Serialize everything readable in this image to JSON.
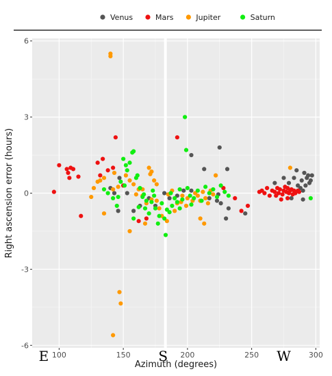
{
  "chart_data": {
    "type": "scatter",
    "xlabel": "Azimuth (degrees)",
    "ylabel": "Right ascension error (hours)",
    "xlim": [
      79,
      303
    ],
    "ylim": [
      -6.1,
      6.1
    ],
    "x_ticks": [
      100,
      150,
      200,
      250,
      300
    ],
    "y_ticks": [
      -6,
      -3,
      0,
      3,
      6
    ],
    "grid": true,
    "legend_position": "top",
    "compass_labels": [
      {
        "label": "E",
        "x": 88
      },
      {
        "label": "S",
        "x": 181
      },
      {
        "label": "W",
        "x": 275
      }
    ],
    "series": [
      {
        "name": "Venus",
        "color": "#555555",
        "points": [
          [
            140,
            0.2
          ],
          [
            143,
            0.0
          ],
          [
            146,
            -0.7
          ],
          [
            147,
            0.6
          ],
          [
            150,
            0.3
          ],
          [
            153,
            0.0
          ],
          [
            158,
            -0.7
          ],
          [
            163,
            -0.5
          ],
          [
            170,
            -0.2
          ],
          [
            175,
            -0.5
          ],
          [
            182,
            0.0
          ],
          [
            186,
            -0.2
          ],
          [
            192,
            -0.1
          ],
          [
            197,
            0.1
          ],
          [
            203,
            0.1
          ],
          [
            210,
            -0.3
          ],
          [
            217,
            -0.2
          ],
          [
            223,
            -0.3
          ],
          [
            226,
            -0.4
          ],
          [
            232,
            -0.6
          ],
          [
            203,
            1.5
          ],
          [
            213,
            0.95
          ],
          [
            225,
            1.8
          ],
          [
            231,
            0.95
          ],
          [
            230,
            -1.0
          ],
          [
            245,
            -0.8
          ],
          [
            268,
            0.4
          ],
          [
            275,
            0.6
          ],
          [
            279,
            0.4
          ],
          [
            283,
            0.6
          ],
          [
            285,
            0.9
          ],
          [
            286,
            0.3
          ],
          [
            288,
            0.2
          ],
          [
            289,
            0.5
          ],
          [
            290,
            0.1
          ],
          [
            291,
            0.8
          ],
          [
            292,
            0.3
          ],
          [
            293,
            0.6
          ],
          [
            294,
            0.7
          ],
          [
            295,
            0.4
          ],
          [
            296,
            0.5
          ],
          [
            297,
            0.7
          ],
          [
            290,
            -0.25
          ],
          [
            281,
            -0.2
          ],
          [
            224,
            -0.05
          ]
        ]
      },
      {
        "name": "Mars",
        "color": "#ee1111",
        "points": [
          [
            96,
            0.05
          ],
          [
            100,
            1.1
          ],
          [
            106,
            0.95
          ],
          [
            107,
            0.8
          ],
          [
            108,
            0.6
          ],
          [
            109,
            1.0
          ],
          [
            111,
            0.95
          ],
          [
            115,
            0.65
          ],
          [
            117,
            -0.9
          ],
          [
            130,
            1.2
          ],
          [
            132,
            0.7
          ],
          [
            134,
            1.35
          ],
          [
            138,
            0.9
          ],
          [
            142,
            1.0
          ],
          [
            144,
            2.2
          ],
          [
            150,
            0.3
          ],
          [
            162,
            -1.1
          ],
          [
            168,
            -1.0
          ],
          [
            192,
            2.2
          ],
          [
            228,
            0.2
          ],
          [
            237,
            -0.2
          ],
          [
            242,
            -0.7
          ],
          [
            247,
            -0.5
          ],
          [
            256,
            0.05
          ],
          [
            258,
            0.1
          ],
          [
            260,
            0.0
          ],
          [
            262,
            0.2
          ],
          [
            264,
            -0.1
          ],
          [
            266,
            0.1
          ],
          [
            268,
            0.05
          ],
          [
            270,
            0.2
          ],
          [
            271,
            0.0
          ],
          [
            272,
            0.15
          ],
          [
            274,
            -0.05
          ],
          [
            275,
            0.1
          ],
          [
            276,
            0.25
          ],
          [
            277,
            0.05
          ],
          [
            278,
            0.2
          ],
          [
            279,
            0.0
          ],
          [
            280,
            0.1
          ],
          [
            281,
            0.15
          ],
          [
            282,
            -0.05
          ],
          [
            283,
            0.1
          ],
          [
            284,
            0.0
          ],
          [
            286,
            0.1
          ],
          [
            287,
            0.05
          ],
          [
            269,
            -0.1
          ],
          [
            273,
            -0.25
          ],
          [
            278,
            -0.2
          ]
        ]
      },
      {
        "name": "Jupiter",
        "color": "#ff9900",
        "points": [
          [
            140,
            5.5
          ],
          [
            140,
            5.4
          ],
          [
            147,
            -3.9
          ],
          [
            148,
            -4.35
          ],
          [
            142,
            -5.6
          ],
          [
            127,
            0.2
          ],
          [
            132,
            0.5
          ],
          [
            135,
            0.6
          ],
          [
            142,
            0.15
          ],
          [
            146,
            0.25
          ],
          [
            152,
            0.7
          ],
          [
            155,
            0.5
          ],
          [
            158,
            0.35
          ],
          [
            160,
            -0.05
          ],
          [
            162,
            0.15
          ],
          [
            165,
            -0.1
          ],
          [
            168,
            -0.4
          ],
          [
            170,
            1.0
          ],
          [
            171,
            0.75
          ],
          [
            172,
            0.85
          ],
          [
            174,
            0.5
          ],
          [
            176,
            -0.3
          ],
          [
            178,
            -0.6
          ],
          [
            180,
            -0.9
          ],
          [
            184,
            -1.1
          ],
          [
            190,
            -0.7
          ],
          [
            192,
            -0.4
          ],
          [
            196,
            -0.1
          ],
          [
            200,
            -0.2
          ],
          [
            204,
            -0.3
          ],
          [
            206,
            0.0
          ],
          [
            208,
            -0.1
          ],
          [
            210,
            -0.3
          ],
          [
            212,
            0.05
          ],
          [
            214,
            -0.2
          ],
          [
            216,
            -0.4
          ],
          [
            218,
            0.1
          ],
          [
            220,
            -0.05
          ],
          [
            222,
            0.7
          ],
          [
            210,
            -1.0
          ],
          [
            213,
            -1.2
          ],
          [
            195,
            -0.35
          ],
          [
            185,
            -0.05
          ],
          [
            172,
            -0.25
          ],
          [
            167,
            -1.2
          ],
          [
            125,
            -0.15
          ],
          [
            155,
            -1.5
          ],
          [
            135,
            -0.8
          ],
          [
            280,
            1.0
          ],
          [
            165,
            0.15
          ],
          [
            176,
            0.35
          ],
          [
            188,
            0.1
          ],
          [
            199,
            -0.5
          ],
          [
            143,
            0.8
          ],
          [
            130,
            0.45
          ]
        ]
      },
      {
        "name": "Saturn",
        "color": "#11ee11",
        "points": [
          [
            135,
            0.15
          ],
          [
            138,
            0.0
          ],
          [
            142,
            -0.2
          ],
          [
            145,
            -0.5
          ],
          [
            148,
            0.45
          ],
          [
            150,
            1.35
          ],
          [
            152,
            1.1
          ],
          [
            153,
            0.9
          ],
          [
            155,
            1.2
          ],
          [
            157,
            1.6
          ],
          [
            158,
            1.65
          ],
          [
            160,
            0.6
          ],
          [
            161,
            0.7
          ],
          [
            163,
            0.2
          ],
          [
            165,
            -0.15
          ],
          [
            167,
            -0.6
          ],
          [
            168,
            -0.3
          ],
          [
            170,
            -0.8
          ],
          [
            172,
            -0.35
          ],
          [
            174,
            -0.1
          ],
          [
            175,
            -0.6
          ],
          [
            177,
            -1.2
          ],
          [
            178,
            -0.9
          ],
          [
            180,
            -0.4
          ],
          [
            182,
            -1.0
          ],
          [
            184,
            -0.65
          ],
          [
            186,
            -0.75
          ],
          [
            188,
            -0.5
          ],
          [
            190,
            -0.2
          ],
          [
            192,
            -0.35
          ],
          [
            194,
            -0.6
          ],
          [
            196,
            -0.25
          ],
          [
            198,
            3.0
          ],
          [
            199,
            1.7
          ],
          [
            200,
            0.2
          ],
          [
            202,
            -0.1
          ],
          [
            205,
            -0.2
          ],
          [
            208,
            0.1
          ],
          [
            211,
            -0.3
          ],
          [
            214,
            0.25
          ],
          [
            217,
            0.0
          ],
          [
            220,
            0.15
          ],
          [
            223,
            -0.15
          ],
          [
            226,
            0.3
          ],
          [
            229,
            0.05
          ],
          [
            232,
            -0.1
          ],
          [
            296,
            -0.2
          ],
          [
            183,
            -1.65
          ],
          [
            158,
            -1.0
          ],
          [
            151,
            0.3
          ],
          [
            146,
            -0.15
          ],
          [
            166,
            -0.05
          ],
          [
            173,
            0.1
          ],
          [
            187,
            0.0
          ],
          [
            194,
            0.15
          ],
          [
            203,
            -0.45
          ],
          [
            162,
            -0.55
          ]
        ]
      }
    ]
  }
}
